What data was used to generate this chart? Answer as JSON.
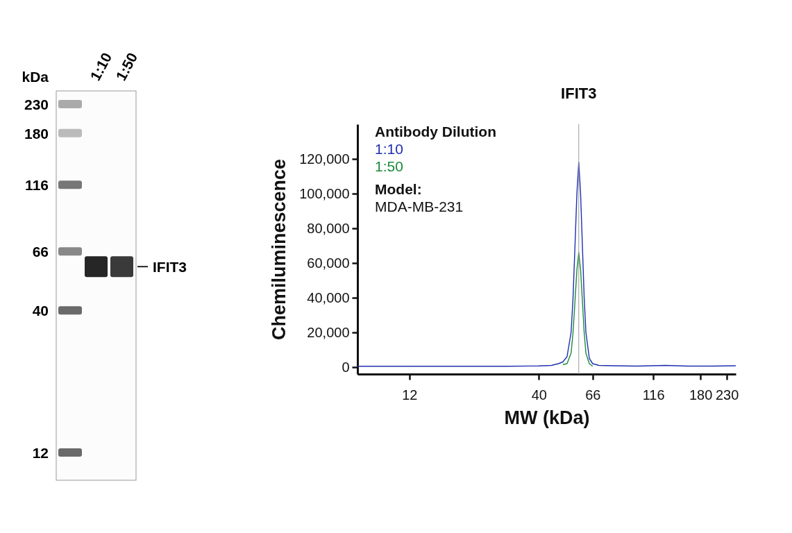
{
  "chart_data": [
    {
      "type": "other",
      "ylabel": "kDa",
      "categories": [
        "1:10",
        "1:50"
      ],
      "annotations": [
        "230",
        "180",
        "116",
        "66",
        "40",
        "12",
        "IFIT3"
      ]
    },
    {
      "type": "line",
      "xlabel": "MW (kDa)",
      "ylabel": "Chemiluminescence",
      "legend_title": "Antibody Dilution",
      "log": "x",
      "x": [
        7.4,
        10,
        15,
        20,
        30,
        40,
        45,
        48,
        50,
        52,
        54,
        55,
        56,
        57,
        58,
        59,
        60,
        61,
        62,
        64,
        66,
        70,
        80,
        100,
        130,
        160,
        200,
        250
      ],
      "series": [
        {
          "name": "1:10",
          "color": "#1f2fb0",
          "values": [
            500,
            500,
            500,
            500,
            500,
            700,
            1000,
            2000,
            3000,
            6000,
            20000,
            40000,
            70000,
            100000,
            118000,
            100000,
            70000,
            40000,
            20000,
            5000,
            2000,
            1000,
            800,
            600,
            1000,
            600,
            600,
            800
          ]
        },
        {
          "name": "1:50",
          "color": "#1a8a3a",
          "values": [
            null,
            null,
            null,
            null,
            null,
            null,
            null,
            null,
            1500,
            2000,
            8000,
            20000,
            38000,
            56000,
            66000,
            56000,
            38000,
            20000,
            8000,
            2000,
            500,
            null,
            null,
            null,
            null,
            null,
            null,
            null
          ]
        }
      ],
      "xlim": [
        7.4,
        250
      ],
      "xticks": [
        12,
        40,
        66,
        116,
        180,
        230
      ],
      "ylim": [
        -4000,
        140000
      ],
      "yticks": [
        0,
        {
          "value": 20000,
          "label": "20,000"
        },
        {
          "value": 40000,
          "label": "40,000"
        },
        {
          "value": 60000,
          "label": "60,000"
        },
        {
          "value": 80000,
          "label": "80,000"
        },
        {
          "value": 100000,
          "label": "100,000"
        },
        {
          "value": 120000,
          "label": "120,000"
        }
      ],
      "ref_lines": [
        {
          "axis": "x",
          "value": 58,
          "label": "IFIT3",
          "color": "#999999"
        }
      ],
      "annotations": [
        "Model:",
        "MDA-MB-231"
      ]
    }
  ]
}
